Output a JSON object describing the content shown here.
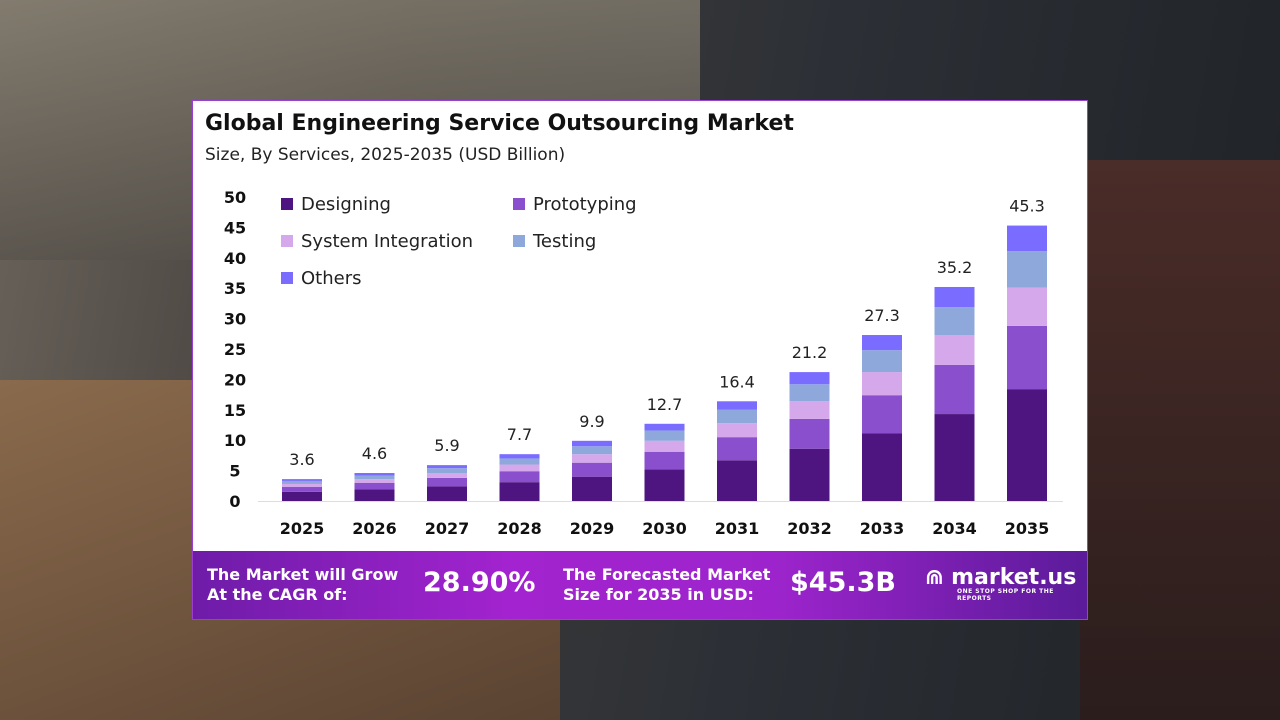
{
  "chart_data": {
    "type": "bar",
    "stacked": true,
    "title": "Global Engineering Service Outsourcing Market",
    "subtitle": "Size, By Services, 2025-2035 (USD Billion)",
    "categories": [
      "2025",
      "2026",
      "2027",
      "2028",
      "2029",
      "2030",
      "2031",
      "2032",
      "2033",
      "2034",
      "2035"
    ],
    "totals": [
      3.6,
      4.6,
      5.9,
      7.7,
      9.9,
      12.7,
      16.4,
      21.2,
      27.3,
      35.2,
      45.3
    ],
    "series": [
      {
        "name": "Designing",
        "color": "#4e1580",
        "values": [
          1.5,
          1.9,
          2.4,
          3.1,
          4.0,
          5.2,
          6.7,
          8.6,
          11.1,
          14.3,
          18.4
        ]
      },
      {
        "name": "Prototyping",
        "color": "#8a4fcc",
        "values": [
          0.8,
          1.1,
          1.4,
          1.8,
          2.3,
          2.9,
          3.8,
          4.9,
          6.3,
          8.1,
          10.4
        ]
      },
      {
        "name": "System Integration",
        "color": "#d4a8ea",
        "values": [
          0.5,
          0.6,
          0.8,
          1.1,
          1.4,
          1.8,
          2.3,
          2.9,
          3.8,
          4.9,
          6.3
        ]
      },
      {
        "name": "Testing",
        "color": "#8fa8dc",
        "values": [
          0.5,
          0.6,
          0.8,
          1.0,
          1.3,
          1.7,
          2.2,
          2.8,
          3.6,
          4.6,
          6.0
        ]
      },
      {
        "name": "Others",
        "color": "#7a6cff",
        "values": [
          0.3,
          0.4,
          0.5,
          0.7,
          0.9,
          1.1,
          1.4,
          2.0,
          2.5,
          3.3,
          4.2
        ]
      }
    ],
    "yticks": [
      0,
      5,
      10,
      15,
      20,
      25,
      30,
      35,
      40,
      45,
      50
    ],
    "ylim": [
      0,
      50
    ],
    "grid": false,
    "legend": "top-left"
  },
  "banner": {
    "cagr_label_1": "The Market will Grow",
    "cagr_label_2": "At the CAGR of:",
    "cagr_value": "28.90%",
    "forecast_label_1": "The Forecasted Market",
    "forecast_label_2": "Size for 2035 in USD:",
    "forecast_value": "$45.3B",
    "logo_text": "market.us",
    "logo_tagline": "ONE STOP SHOP FOR THE REPORTS"
  }
}
